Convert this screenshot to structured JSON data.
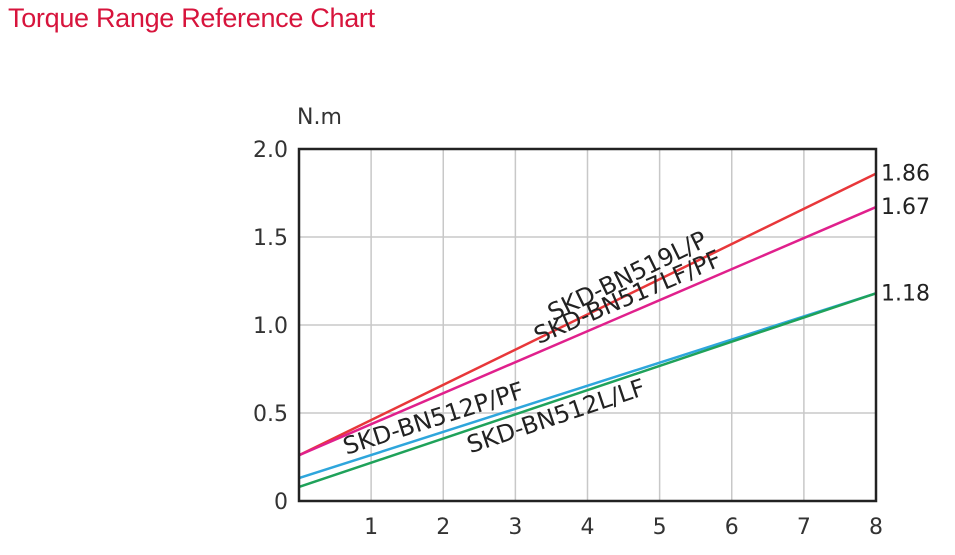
{
  "page": {
    "title": "Torque Range Reference Chart"
  },
  "chart_data": {
    "type": "line",
    "title": "Torque Range Reference Chart",
    "ylabel": "N.m",
    "xlabel": "",
    "xlim": [
      0,
      8
    ],
    "ylim": [
      0,
      2.0
    ],
    "x_ticks": [
      "1",
      "2",
      "3",
      "4",
      "5",
      "6",
      "7",
      "8"
    ],
    "y_ticks": [
      "0",
      "0.5",
      "1.0",
      "1.5",
      "2.0"
    ],
    "grid": true,
    "series": [
      {
        "name": "SKD-BN519L/P",
        "color": "#e8373a",
        "x": [
          0,
          8
        ],
        "y": [
          0.26,
          1.86
        ],
        "end_label": "1.86"
      },
      {
        "name": "SKD-BN517LF/PF",
        "color": "#e0208c",
        "x": [
          0,
          8
        ],
        "y": [
          0.26,
          1.67
        ],
        "end_label": "1.67"
      },
      {
        "name": "SKD-BN512P/PF",
        "color": "#2ea6dc",
        "x": [
          0,
          8
        ],
        "y": [
          0.13,
          1.18
        ],
        "end_label": ""
      },
      {
        "name": "SKD-BN512L/LF",
        "color": "#1fa25a",
        "x": [
          0,
          8
        ],
        "y": [
          0.08,
          1.18
        ],
        "end_label": "1.18"
      }
    ]
  }
}
